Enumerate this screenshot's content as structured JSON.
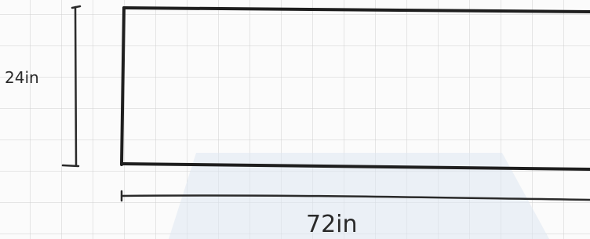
{
  "dimensions": {
    "height": {
      "label": "24in"
    },
    "width": {
      "label": "72in"
    }
  }
}
